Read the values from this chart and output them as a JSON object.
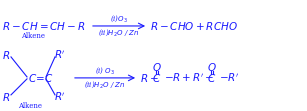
{
  "bg_color": "#ffffff",
  "text_color": "#1a1aff",
  "figsize": [
    3.07,
    1.11
  ],
  "dpi": 100,
  "fs": 7.5,
  "fs_small": 5.0
}
